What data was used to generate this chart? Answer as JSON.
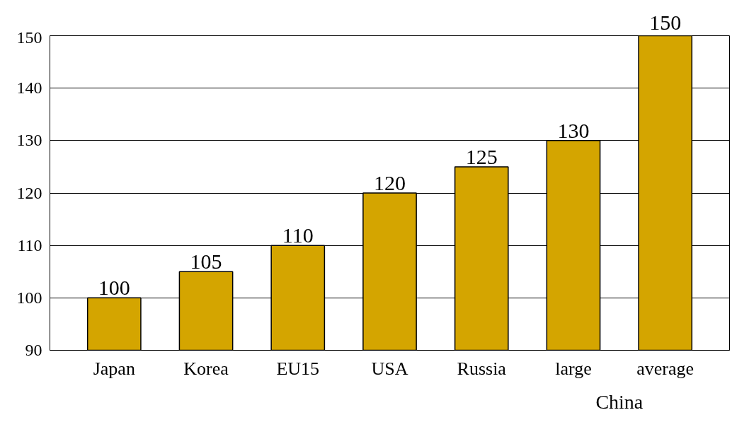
{
  "chart_data": {
    "type": "bar",
    "categories": [
      "Japan",
      "Korea",
      "EU15",
      "USA",
      "Russia",
      "large",
      "average"
    ],
    "values": [
      100,
      105,
      110,
      120,
      125,
      130,
      150
    ],
    "color": "#d4a500",
    "ylim": [
      90,
      150
    ],
    "yticks": [
      90,
      100,
      110,
      120,
      130,
      140,
      150
    ],
    "grid": "y",
    "data_labels": true,
    "annotations": [
      "China"
    ]
  }
}
